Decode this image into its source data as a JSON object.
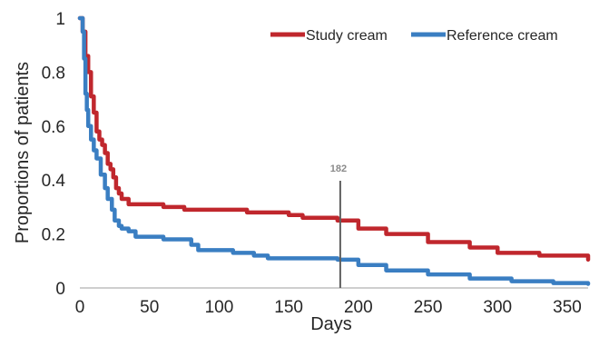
{
  "chart_data": {
    "type": "line",
    "title": "",
    "xlabel": "Days",
    "ylabel": "Proportions of patients",
    "xlim": [
      0,
      365
    ],
    "ylim": [
      0,
      1
    ],
    "xticks": [
      0,
      50,
      100,
      150,
      200,
      250,
      300,
      350
    ],
    "yticks": [
      0,
      0.2,
      0.4,
      0.6,
      0.8,
      1
    ],
    "ytick_labels": [
      "0",
      "0.2",
      "0.4",
      "0.6",
      "0.8",
      "1"
    ],
    "grid": false,
    "legend": "top-right",
    "annotation": {
      "label": "182",
      "x": 187
    },
    "series": [
      {
        "name": "Study cream",
        "color": "#c0272d",
        "step": true,
        "x": [
          0,
          2,
          4,
          6,
          8,
          10,
          12,
          14,
          16,
          18,
          20,
          22,
          24,
          26,
          28,
          30,
          35,
          40,
          60,
          75,
          80,
          120,
          150,
          160,
          185,
          200,
          220,
          250,
          280,
          300,
          330,
          365
        ],
        "y": [
          1.0,
          0.95,
          0.86,
          0.8,
          0.71,
          0.65,
          0.58,
          0.55,
          0.53,
          0.5,
          0.46,
          0.44,
          0.41,
          0.37,
          0.35,
          0.33,
          0.31,
          0.31,
          0.3,
          0.29,
          0.29,
          0.28,
          0.27,
          0.26,
          0.25,
          0.22,
          0.2,
          0.17,
          0.15,
          0.13,
          0.12,
          0.105
        ]
      },
      {
        "name": "Reference cream",
        "color": "#3a7ec2",
        "step": true,
        "x": [
          0,
          2,
          3,
          4,
          5,
          6,
          8,
          10,
          12,
          15,
          18,
          20,
          23,
          25,
          28,
          30,
          35,
          40,
          55,
          60,
          80,
          85,
          100,
          110,
          125,
          135,
          150,
          185,
          200,
          220,
          250,
          280,
          310,
          340,
          365
        ],
        "y": [
          1.0,
          0.95,
          0.85,
          0.72,
          0.66,
          0.6,
          0.55,
          0.51,
          0.48,
          0.42,
          0.37,
          0.33,
          0.29,
          0.25,
          0.23,
          0.22,
          0.21,
          0.19,
          0.19,
          0.18,
          0.16,
          0.14,
          0.14,
          0.13,
          0.12,
          0.11,
          0.11,
          0.105,
          0.085,
          0.065,
          0.05,
          0.035,
          0.025,
          0.018,
          0.015
        ]
      }
    ]
  }
}
